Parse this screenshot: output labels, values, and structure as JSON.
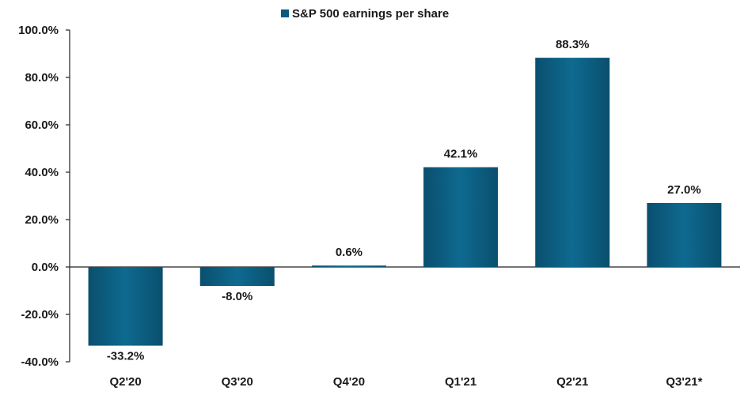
{
  "chart_data": {
    "type": "bar",
    "title": "",
    "xlabel": "",
    "ylabel": "",
    "categories": [
      "Q2'20",
      "Q3'20",
      "Q4'20",
      "Q1'21",
      "Q2'21",
      "Q3'21*"
    ],
    "series": [
      {
        "name": "S&P 500 earnings per share",
        "values": [
          -33.2,
          -8.0,
          0.6,
          42.1,
          88.3,
          27.0
        ],
        "labels": [
          "-33.2%",
          "-8.0%",
          "0.6%",
          "42.1%",
          "88.3%",
          "27.0%"
        ],
        "color": "#0b5a7c"
      }
    ],
    "ylim": [
      -40,
      100
    ],
    "yticks": [
      100,
      80,
      60,
      40,
      20,
      0,
      -20,
      -40
    ],
    "ytick_labels": [
      "100.0%",
      "80.0%",
      "60.0%",
      "40.0%",
      "20.0%",
      "0.0%",
      "-20.0%",
      "-40.0%"
    ],
    "grid": false,
    "legend_position": "top-center"
  }
}
